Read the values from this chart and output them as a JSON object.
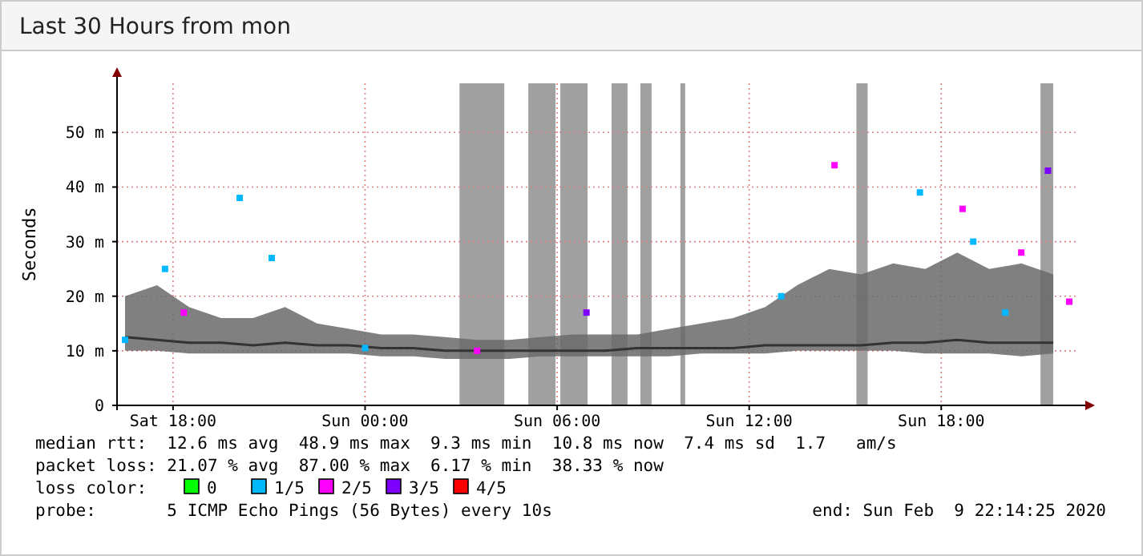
{
  "chart_data": {
    "type": "line",
    "title": "Last 30 Hours from mon",
    "ylabel": "Seconds",
    "legend_title": "loss color:",
    "legend": "bottom",
    "grid": true,
    "xlim": [
      "2020-02-08T16:15",
      "2020-02-09T22:15"
    ],
    "xticks": [
      {
        "value": "2020-02-08T18:00",
        "label": "Sat 18:00"
      },
      {
        "value": "2020-02-09T00:00",
        "label": "Sun 00:00"
      },
      {
        "value": "2020-02-09T06:00",
        "label": "Sun 06:00"
      },
      {
        "value": "2020-02-09T12:00",
        "label": "Sun 12:00"
      },
      {
        "value": "2020-02-09T18:00",
        "label": "Sun 18:00"
      }
    ],
    "ylim": [
      0,
      59
    ],
    "yticks": [
      {
        "value": 0,
        "label": "0"
      },
      {
        "value": 10,
        "label": "10 m"
      },
      {
        "value": 20,
        "label": "20 m"
      },
      {
        "value": 30,
        "label": "30 m"
      },
      {
        "value": 40,
        "label": "40 m"
      },
      {
        "value": 50,
        "label": "50 m"
      }
    ],
    "bands": [
      {
        "axis": "x",
        "from": "2020-02-09T02:57",
        "to": "2020-02-09T04:21",
        "color": "#a0a0a0"
      },
      {
        "axis": "x",
        "from": "2020-02-09T05:06",
        "to": "2020-02-09T05:57",
        "color": "#a0a0a0"
      },
      {
        "axis": "x",
        "from": "2020-02-09T06:06",
        "to": "2020-02-09T06:57",
        "color": "#a0a0a0"
      },
      {
        "axis": "x",
        "from": "2020-02-09T07:42",
        "to": "2020-02-09T08:12",
        "color": "#a0a0a0"
      },
      {
        "axis": "x",
        "from": "2020-02-09T08:36",
        "to": "2020-02-09T08:57",
        "color": "#a0a0a0"
      },
      {
        "axis": "x",
        "from": "2020-02-09T09:51",
        "to": "2020-02-09T10:00",
        "color": "#a0a0a0"
      },
      {
        "axis": "x",
        "from": "2020-02-09T15:21",
        "to": "2020-02-09T15:42",
        "color": "#a0a0a0"
      },
      {
        "axis": "x",
        "from": "2020-02-09T21:06",
        "to": "2020-02-09T21:30",
        "color": "#a0a0a0"
      }
    ],
    "series": [
      {
        "color": "#333333",
        "x": [
          "2020-02-08T16:30",
          "2020-02-08T17:30",
          "2020-02-08T18:30",
          "2020-02-08T19:30",
          "2020-02-08T20:30",
          "2020-02-08T21:30",
          "2020-02-08T22:30",
          "2020-02-08T23:30",
          "2020-02-09T00:30",
          "2020-02-09T01:30",
          "2020-02-09T02:30",
          "2020-02-09T03:30",
          "2020-02-09T04:30",
          "2020-02-09T05:30",
          "2020-02-09T06:30",
          "2020-02-09T07:30",
          "2020-02-09T08:30",
          "2020-02-09T09:30",
          "2020-02-09T10:30",
          "2020-02-09T11:30",
          "2020-02-09T12:30",
          "2020-02-09T13:30",
          "2020-02-09T14:30",
          "2020-02-09T15:30",
          "2020-02-09T16:30",
          "2020-02-09T17:30",
          "2020-02-09T18:30",
          "2020-02-09T19:30",
          "2020-02-09T20:30",
          "2020-02-09T21:30"
        ],
        "values": [
          12.5,
          12,
          11.5,
          11.5,
          11,
          11.5,
          11,
          11,
          10.5,
          10.5,
          10,
          10,
          10,
          10,
          10,
          10,
          10.5,
          10.5,
          10.5,
          10.5,
          11,
          11,
          11,
          11,
          11.5,
          11.5,
          12,
          11.5,
          11.5,
          11.5
        ],
        "lower": [
          10,
          10,
          9.5,
          9.5,
          9.5,
          9.5,
          9.5,
          9.5,
          9,
          9,
          8.5,
          8.5,
          8.5,
          9,
          9,
          9,
          9,
          9,
          9.5,
          9.5,
          9.5,
          10,
          10,
          10,
          10,
          9.5,
          9.5,
          9.5,
          9,
          9.5
        ],
        "upper": [
          20,
          22,
          18,
          16,
          16,
          18,
          15,
          14,
          13,
          13,
          12.5,
          12,
          12,
          12.5,
          13,
          13,
          13,
          14,
          15,
          16,
          18,
          22,
          25,
          24,
          26,
          25,
          28,
          25,
          26,
          24
        ]
      },
      {
        "type": "scatter",
        "name": "0",
        "color": "#00ff00"
      },
      {
        "type": "scatter",
        "name": "1/5",
        "color": "#00b8ff",
        "x": [
          "2020-02-08T16:30",
          "2020-02-08T17:45",
          "2020-02-08T20:05",
          "2020-02-08T21:05",
          "2020-02-09T00:00",
          "2020-02-09T13:00",
          "2020-02-09T17:20",
          "2020-02-09T19:00",
          "2020-02-09T20:00"
        ],
        "values": [
          12,
          25,
          38,
          27,
          10.5,
          20,
          39,
          30,
          17
        ]
      },
      {
        "type": "scatter",
        "name": "2/5",
        "color": "#ff00ff",
        "x": [
          "2020-02-08T18:20",
          "2020-02-09T03:30",
          "2020-02-09T14:40",
          "2020-02-09T18:40",
          "2020-02-09T20:30",
          "2020-02-09T22:00"
        ],
        "values": [
          17,
          10,
          44,
          36,
          28,
          19
        ]
      },
      {
        "type": "scatter",
        "name": "3/5",
        "color": "#7e00ff",
        "x": [
          "2020-02-09T06:55",
          "2020-02-09T21:20"
        ],
        "values": [
          17,
          43
        ]
      },
      {
        "type": "scatter",
        "name": "4/5",
        "color": "#ff0000"
      }
    ],
    "annotations": [
      "median rtt:  12.6 ms avg  48.9 ms max  9.3 ms min  10.8 ms now  7.4 ms sd  1.7   am/s",
      "packet loss: 21.07 % avg  87.00 % max  6.17 % min  38.33 % now",
      "probe:       5 ICMP Echo Pings (56 Bytes) every 10s",
      "end: Sun Feb  9 22:14:25 2020"
    ]
  }
}
